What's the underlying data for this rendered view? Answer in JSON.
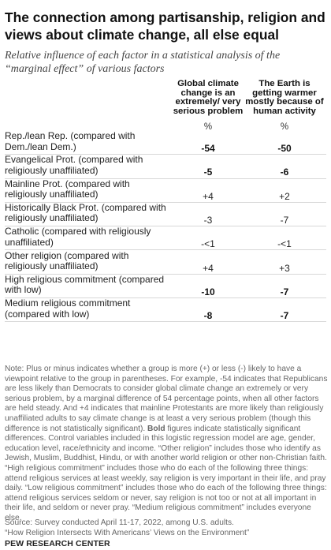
{
  "chart_data": {
    "type": "table",
    "title": "The connection among partisanship, religion and views about climate change, all else equal",
    "subtitle": "Relative influence of each factor in a statistical analysis of the “marginal effect” of various factors",
    "columns": [
      {
        "label": "Global climate change is an extremely/ very serious problem",
        "unit": "%"
      },
      {
        "label": "The Earth is getting warmer mostly because of human activity",
        "unit": "%"
      }
    ],
    "rows": [
      {
        "label": "Rep./lean Rep. (compared with Dem./lean Dem.)",
        "values": [
          "-54",
          "-50"
        ],
        "bold": [
          true,
          true
        ]
      },
      {
        "label": "Evangelical Prot. (compared with religiously unaffiliated)",
        "values": [
          "-5",
          "-6"
        ],
        "bold": [
          true,
          true
        ]
      },
      {
        "label": "Mainline Prot. (compared with religiously unaffiliated)",
        "values": [
          "+4",
          "+2"
        ],
        "bold": [
          false,
          false
        ]
      },
      {
        "label": "Historically Black Prot. (compared with religiously unaffiliated)",
        "values": [
          "-3",
          "-7"
        ],
        "bold": [
          false,
          false
        ]
      },
      {
        "label": "Catholic (compared with religiously unaffiliated)",
        "values": [
          "-<1",
          "-<1"
        ],
        "bold": [
          false,
          false
        ]
      },
      {
        "label": "Other religion (compared with religiously unaffiliated)",
        "values": [
          "+4",
          "+3"
        ],
        "bold": [
          false,
          false
        ]
      },
      {
        "label": "High religious commitment (compared with low)",
        "values": [
          "-10",
          "-7"
        ],
        "bold": [
          true,
          true
        ]
      },
      {
        "label": "Medium religious commitment (compared with low)",
        "values": [
          "-8",
          "-7"
        ],
        "bold": [
          true,
          true
        ]
      }
    ]
  },
  "note": {
    "part1": "Note: Plus or minus indicates whether a group is more (+) or less (-) likely to have a viewpoint relative to the group in parentheses. For example, -54 indicates that Republicans are less likely than Democrats to consider global climate change an extremely or very serious problem, by a marginal difference of 54 percentage points, when all other factors are held steady. And +4 indicates that mainline Protestants are more likely than religiously unaffiliated adults to say climate change is at least a very serious problem (though this difference is not statistically significant).",
    "bold_word": "Bold",
    "part2": "figures indicate statistically significant differences. Control variables included in this logistic regression model are age, gender, education level, race/ethnicity and income. “Other religion” includes those who identify as Jewish, Muslim, Buddhist, Hindu, or with another world religion or other non-Christian faith. “High religious commitment” includes those who do each of the following three things: attend religious services at least weekly, say religion is very important in their life, and pray daily. “Low religious commitment” includes those who do each of the following three things: attend religious services seldom or never, say religion is not too or not at all important in their life, and seldom or never pray. “Medium religious commitment” includes everyone else."
  },
  "source": {
    "line1": "Source: Survey conducted April 11-17, 2022, among U.S. adults.",
    "line2": "“How Religion Intersects With Americans’ Views on the Environment”"
  },
  "brand": "PEW RESEARCH CENTER"
}
